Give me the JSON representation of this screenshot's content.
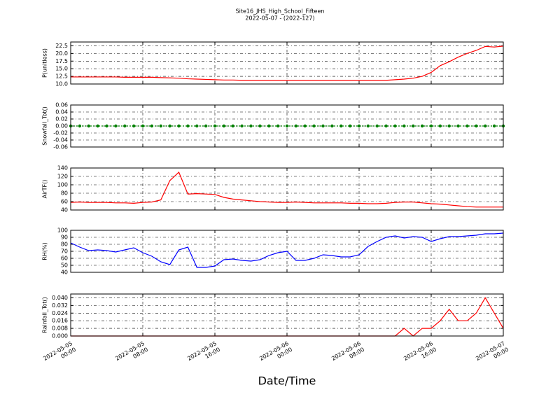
{
  "title": "Site16_JHS_High_School_Fifteen",
  "subtitle": "2022-05-07 - (2022-127)",
  "chart_data": [
    {
      "type": "line",
      "ylabel": "P(unitless)",
      "x": [
        "2022-05-05 00:00",
        "2022-05-05 01:00",
        "2022-05-05 02:00",
        "2022-05-05 03:00",
        "2022-05-05 04:00",
        "2022-05-05 05:00",
        "2022-05-05 06:00",
        "2022-05-05 07:00",
        "2022-05-05 08:00",
        "2022-05-05 09:00",
        "2022-05-05 10:00",
        "2022-05-05 11:00",
        "2022-05-05 12:00",
        "2022-05-05 13:00",
        "2022-05-05 14:00",
        "2022-05-05 15:00",
        "2022-05-05 16:00",
        "2022-05-05 17:00",
        "2022-05-05 18:00",
        "2022-05-05 19:00",
        "2022-05-05 20:00",
        "2022-05-05 21:00",
        "2022-05-05 22:00",
        "2022-05-05 23:00",
        "2022-05-06 00:00",
        "2022-05-06 01:00",
        "2022-05-06 02:00",
        "2022-05-06 03:00",
        "2022-05-06 04:00",
        "2022-05-06 05:00",
        "2022-05-06 06:00",
        "2022-05-06 07:00",
        "2022-05-06 08:00",
        "2022-05-06 09:00",
        "2022-05-06 10:00",
        "2022-05-06 11:00",
        "2022-05-06 12:00",
        "2022-05-06 13:00",
        "2022-05-06 14:00",
        "2022-05-06 15:00",
        "2022-05-06 16:00",
        "2022-05-06 17:00",
        "2022-05-06 18:00",
        "2022-05-06 19:00",
        "2022-05-06 20:00",
        "2022-05-06 21:00",
        "2022-05-06 22:00",
        "2022-05-06 23:00",
        "2022-05-07 00:00"
      ],
      "series": [
        {
          "color": "#ff0000",
          "values": [
            12.3,
            12.3,
            12.3,
            12.3,
            12.3,
            12.3,
            12.2,
            12.2,
            12.2,
            12.2,
            12.1,
            12.0,
            11.9,
            11.7,
            11.6,
            11.5,
            11.4,
            11.3,
            11.3,
            11.2,
            11.2,
            11.2,
            11.2,
            11.2,
            11.2,
            11.2,
            11.2,
            11.2,
            11.2,
            11.2,
            11.2,
            11.2,
            11.2,
            11.2,
            11.2,
            11.2,
            11.4,
            11.6,
            11.9,
            12.5,
            13.8,
            16.0,
            17.3,
            18.8,
            20.0,
            21.0,
            22.3,
            22.1,
            22.4
          ]
        }
      ],
      "ylim": [
        10,
        23.75
      ],
      "yticks": [
        {
          "value": 10,
          "label": "10.0"
        },
        {
          "value": 12.5,
          "label": "12.5"
        },
        {
          "value": 15,
          "label": "15.0"
        },
        {
          "value": 17.5,
          "label": "17.5"
        },
        {
          "value": 20,
          "label": "20.0"
        },
        {
          "value": 22.5,
          "label": "22.5"
        }
      ],
      "xlim": [
        "2022-05-05 00:00",
        "2022-05-07 00:00"
      ],
      "xticks": [
        "2022-05-05 00:00",
        "2022-05-05 08:00",
        "2022-05-05 16:00",
        "2022-05-06 00:00",
        "2022-05-06 08:00",
        "2022-05-06 16:00",
        "2022-05-07 00:00"
      ],
      "grid": true
    },
    {
      "type": "line",
      "ylabel": "Snowfall_Tot()",
      "marker": true,
      "x": [
        "2022-05-05 00:00",
        "2022-05-05 01:00",
        "2022-05-05 02:00",
        "2022-05-05 03:00",
        "2022-05-05 04:00",
        "2022-05-05 05:00",
        "2022-05-05 06:00",
        "2022-05-05 07:00",
        "2022-05-05 08:00",
        "2022-05-05 09:00",
        "2022-05-05 10:00",
        "2022-05-05 11:00",
        "2022-05-05 12:00",
        "2022-05-05 13:00",
        "2022-05-05 14:00",
        "2022-05-05 15:00",
        "2022-05-05 16:00",
        "2022-05-05 17:00",
        "2022-05-05 18:00",
        "2022-05-05 19:00",
        "2022-05-05 20:00",
        "2022-05-05 21:00",
        "2022-05-05 22:00",
        "2022-05-05 23:00",
        "2022-05-06 00:00",
        "2022-05-06 01:00",
        "2022-05-06 02:00",
        "2022-05-06 03:00",
        "2022-05-06 04:00",
        "2022-05-06 05:00",
        "2022-05-06 06:00",
        "2022-05-06 07:00",
        "2022-05-06 08:00",
        "2022-05-06 09:00",
        "2022-05-06 10:00",
        "2022-05-06 11:00",
        "2022-05-06 12:00",
        "2022-05-06 13:00",
        "2022-05-06 14:00",
        "2022-05-06 15:00",
        "2022-05-06 16:00",
        "2022-05-06 17:00",
        "2022-05-06 18:00",
        "2022-05-06 19:00",
        "2022-05-06 20:00",
        "2022-05-06 21:00",
        "2022-05-06 22:00",
        "2022-05-06 23:00",
        "2022-05-07 00:00"
      ],
      "series": [
        {
          "color": "#008000",
          "values": [
            0,
            0,
            0,
            0,
            0,
            0,
            0,
            0,
            0,
            0,
            0,
            0,
            0,
            0,
            0,
            0,
            0,
            0,
            0,
            0,
            0,
            0,
            0,
            0,
            0,
            0,
            0,
            0,
            0,
            0,
            0,
            0,
            0,
            0,
            0,
            0,
            0,
            0,
            0,
            0,
            0,
            0,
            0,
            0,
            0,
            0,
            0,
            0,
            0
          ]
        }
      ],
      "ylim": [
        -0.06,
        0.06
      ],
      "yticks": [
        {
          "value": -0.06,
          "label": "-0.06"
        },
        {
          "value": -0.04,
          "label": "-0.04"
        },
        {
          "value": -0.02,
          "label": "-0.02"
        },
        {
          "value": 0,
          "label": "0.00"
        },
        {
          "value": 0.02,
          "label": "0.02"
        },
        {
          "value": 0.04,
          "label": "0.04"
        },
        {
          "value": 0.06,
          "label": "0.06"
        }
      ],
      "xlim": [
        "2022-05-05 00:00",
        "2022-05-07 00:00"
      ],
      "xticks": [
        "2022-05-05 00:00",
        "2022-05-05 08:00",
        "2022-05-05 16:00",
        "2022-05-06 00:00",
        "2022-05-06 08:00",
        "2022-05-06 16:00",
        "2022-05-07 00:00"
      ],
      "grid": true
    },
    {
      "type": "line",
      "ylabel": "AirTF()",
      "x": [
        "2022-05-05 00:00",
        "2022-05-05 01:00",
        "2022-05-05 02:00",
        "2022-05-05 03:00",
        "2022-05-05 04:00",
        "2022-05-05 05:00",
        "2022-05-05 06:00",
        "2022-05-05 07:00",
        "2022-05-05 08:00",
        "2022-05-05 09:00",
        "2022-05-05 10:00",
        "2022-05-05 11:00",
        "2022-05-05 12:00",
        "2022-05-05 13:00",
        "2022-05-05 14:00",
        "2022-05-05 15:00",
        "2022-05-05 16:00",
        "2022-05-05 17:00",
        "2022-05-05 18:00",
        "2022-05-05 19:00",
        "2022-05-05 20:00",
        "2022-05-05 21:00",
        "2022-05-05 22:00",
        "2022-05-05 23:00",
        "2022-05-06 00:00",
        "2022-05-06 01:00",
        "2022-05-06 02:00",
        "2022-05-06 03:00",
        "2022-05-06 04:00",
        "2022-05-06 05:00",
        "2022-05-06 06:00",
        "2022-05-06 07:00",
        "2022-05-06 08:00",
        "2022-05-06 09:00",
        "2022-05-06 10:00",
        "2022-05-06 11:00",
        "2022-05-06 12:00",
        "2022-05-06 13:00",
        "2022-05-06 14:00",
        "2022-05-06 15:00",
        "2022-05-06 16:00",
        "2022-05-06 17:00",
        "2022-05-06 18:00",
        "2022-05-06 19:00",
        "2022-05-06 20:00",
        "2022-05-06 21:00",
        "2022-05-06 22:00",
        "2022-05-06 23:00",
        "2022-05-07 00:00"
      ],
      "series": [
        {
          "color": "#ff0000",
          "values": [
            58,
            59,
            58,
            58,
            58,
            57,
            57,
            56,
            58,
            59,
            64,
            110,
            130,
            78,
            79,
            78,
            77,
            70,
            66,
            64,
            62,
            60,
            59,
            58,
            58,
            59,
            58,
            57,
            57,
            57,
            57,
            56,
            56,
            55,
            55,
            56,
            58,
            59,
            59,
            57,
            55,
            54,
            52,
            50,
            48,
            47,
            47,
            47,
            47
          ]
        }
      ],
      "ylim": [
        40,
        140
      ],
      "yticks": [
        40,
        60,
        80,
        100,
        120,
        140
      ],
      "xlim": [
        "2022-05-05 00:00",
        "2022-05-07 00:00"
      ],
      "xticks": [
        "2022-05-05 00:00",
        "2022-05-05 08:00",
        "2022-05-05 16:00",
        "2022-05-06 00:00",
        "2022-05-06 08:00",
        "2022-05-06 16:00",
        "2022-05-07 00:00"
      ],
      "grid": true
    },
    {
      "type": "line",
      "ylabel": "RH(%)",
      "x": [
        "2022-05-05 00:00",
        "2022-05-05 01:00",
        "2022-05-05 02:00",
        "2022-05-05 03:00",
        "2022-05-05 04:00",
        "2022-05-05 05:00",
        "2022-05-05 06:00",
        "2022-05-05 07:00",
        "2022-05-05 08:00",
        "2022-05-05 09:00",
        "2022-05-05 10:00",
        "2022-05-05 11:00",
        "2022-05-05 12:00",
        "2022-05-05 13:00",
        "2022-05-05 14:00",
        "2022-05-05 15:00",
        "2022-05-05 16:00",
        "2022-05-05 17:00",
        "2022-05-05 18:00",
        "2022-05-05 19:00",
        "2022-05-05 20:00",
        "2022-05-05 21:00",
        "2022-05-05 22:00",
        "2022-05-05 23:00",
        "2022-05-06 00:00",
        "2022-05-06 01:00",
        "2022-05-06 02:00",
        "2022-05-06 03:00",
        "2022-05-06 04:00",
        "2022-05-06 05:00",
        "2022-05-06 06:00",
        "2022-05-06 07:00",
        "2022-05-06 08:00",
        "2022-05-06 09:00",
        "2022-05-06 10:00",
        "2022-05-06 11:00",
        "2022-05-06 12:00",
        "2022-05-06 13:00",
        "2022-05-06 14:00",
        "2022-05-06 15:00",
        "2022-05-06 16:00",
        "2022-05-06 17:00",
        "2022-05-06 18:00",
        "2022-05-06 19:00",
        "2022-05-06 20:00",
        "2022-05-06 21:00",
        "2022-05-06 22:00",
        "2022-05-06 23:00",
        "2022-05-07 00:00"
      ],
      "series": [
        {
          "color": "#0000ff",
          "values": [
            82,
            76,
            71,
            72,
            71,
            69,
            72,
            75,
            68,
            63,
            55,
            51,
            72,
            76,
            47,
            47,
            49,
            58,
            59,
            57,
            56,
            58,
            64,
            68,
            70,
            57,
            57,
            60,
            65,
            64,
            62,
            62,
            65,
            77,
            84,
            90,
            92,
            89,
            91,
            90,
            84,
            88,
            91,
            91,
            92,
            93,
            95,
            95,
            96
          ]
        }
      ],
      "ylim": [
        40,
        100
      ],
      "yticks": [
        40,
        50,
        60,
        70,
        80,
        90,
        100
      ],
      "xlim": [
        "2022-05-05 00:00",
        "2022-05-07 00:00"
      ],
      "xticks": [
        "2022-05-05 00:00",
        "2022-05-05 08:00",
        "2022-05-05 16:00",
        "2022-05-06 00:00",
        "2022-05-06 08:00",
        "2022-05-06 16:00",
        "2022-05-07 00:00"
      ],
      "grid": true
    },
    {
      "type": "line",
      "ylabel": "Rainfall_Tot()",
      "xlabel": "Date/Time",
      "x": [
        "2022-05-05 00:00",
        "2022-05-05 01:00",
        "2022-05-05 02:00",
        "2022-05-05 03:00",
        "2022-05-05 04:00",
        "2022-05-05 05:00",
        "2022-05-05 06:00",
        "2022-05-05 07:00",
        "2022-05-05 08:00",
        "2022-05-05 09:00",
        "2022-05-05 10:00",
        "2022-05-05 11:00",
        "2022-05-05 12:00",
        "2022-05-05 13:00",
        "2022-05-05 14:00",
        "2022-05-05 15:00",
        "2022-05-05 16:00",
        "2022-05-05 17:00",
        "2022-05-05 18:00",
        "2022-05-05 19:00",
        "2022-05-05 20:00",
        "2022-05-05 21:00",
        "2022-05-05 22:00",
        "2022-05-05 23:00",
        "2022-05-06 00:00",
        "2022-05-06 01:00",
        "2022-05-06 02:00",
        "2022-05-06 03:00",
        "2022-05-06 04:00",
        "2022-05-06 05:00",
        "2022-05-06 06:00",
        "2022-05-06 07:00",
        "2022-05-06 08:00",
        "2022-05-06 09:00",
        "2022-05-06 10:00",
        "2022-05-06 11:00",
        "2022-05-06 12:00",
        "2022-05-06 13:00",
        "2022-05-06 14:00",
        "2022-05-06 15:00",
        "2022-05-06 16:00",
        "2022-05-06 17:00",
        "2022-05-06 18:00",
        "2022-05-06 19:00",
        "2022-05-06 20:00",
        "2022-05-06 21:00",
        "2022-05-06 22:00",
        "2022-05-06 23:00",
        "2022-05-07 00:00"
      ],
      "series": [
        {
          "color": "#ff0000",
          "values": [
            0,
            0,
            0,
            0,
            0,
            0,
            0,
            0,
            0,
            0,
            0,
            0,
            0,
            0,
            0,
            0,
            0,
            0,
            0,
            0,
            0,
            0,
            0,
            0,
            0,
            0,
            0,
            0,
            0,
            0,
            0,
            0,
            0,
            0,
            0,
            0,
            0,
            0.008,
            0,
            0.008,
            0.008,
            0.016,
            0.028,
            0.016,
            0.016,
            0.024,
            0.04,
            0.024,
            0.008
          ]
        }
      ],
      "ylim": [
        0,
        0.044
      ],
      "yticks": [
        {
          "value": 0,
          "label": "0.000"
        },
        {
          "value": 0.008,
          "label": "0.008"
        },
        {
          "value": 0.016,
          "label": "0.016"
        },
        {
          "value": 0.024,
          "label": "0.024"
        },
        {
          "value": 0.032,
          "label": "0.032"
        },
        {
          "value": 0.04,
          "label": "0.040"
        }
      ],
      "xlim": [
        "2022-05-05 00:00",
        "2022-05-07 00:00"
      ],
      "xticks": [
        {
          "value": "2022-05-05 00:00",
          "label": "2022-05-05\n00:00"
        },
        {
          "value": "2022-05-05 08:00",
          "label": "2022-05-05\n08:00"
        },
        {
          "value": "2022-05-05 16:00",
          "label": "2022-05-05\n16:00"
        },
        {
          "value": "2022-05-06 00:00",
          "label": "2022-05-06\n00:00"
        },
        {
          "value": "2022-05-06 08:00",
          "label": "2022-05-06\n08:00"
        },
        {
          "value": "2022-05-06 16:00",
          "label": "2022-05-06\n16:00"
        },
        {
          "value": "2022-05-07 00:00",
          "label": "2022-05-07\n00:00"
        }
      ],
      "grid": true
    }
  ]
}
